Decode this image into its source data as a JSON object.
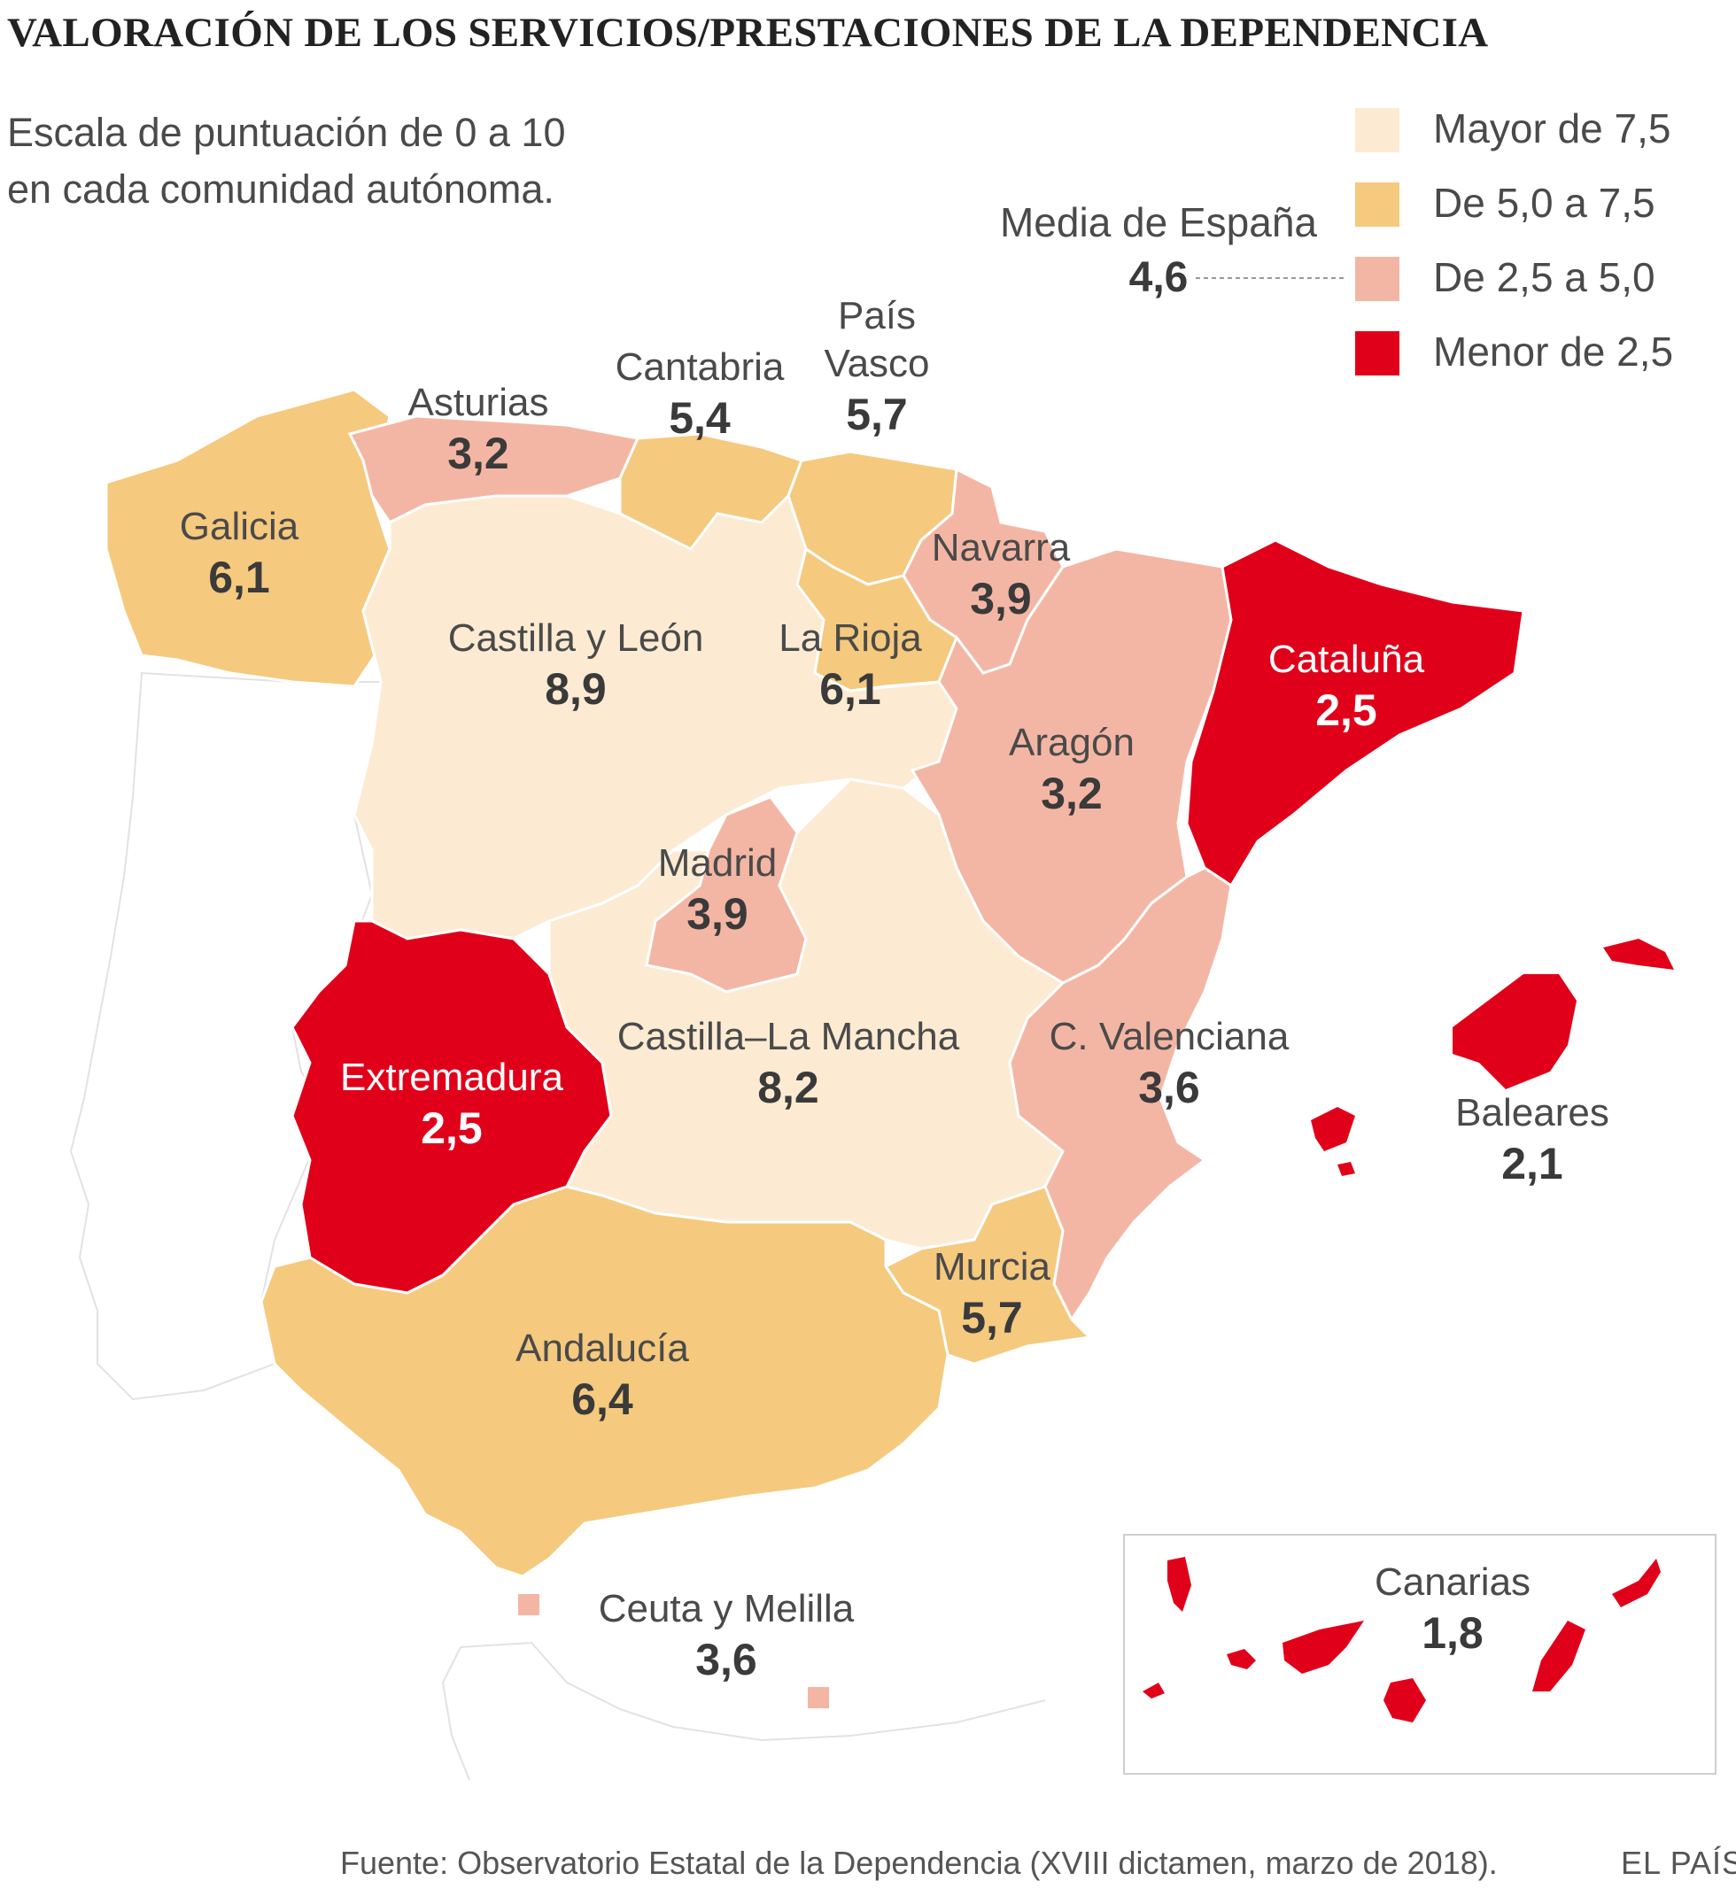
{
  "title": "VALORACIÓN DE LOS SERVICIOS/PRESTACIONES DE LA DEPENDENCIA",
  "subtitle": [
    "Escala de puntuación de 0 a 10",
    "en cada comunidad autónoma."
  ],
  "legend": [
    {
      "label": "Mayor de 7,5",
      "color": "#fcebd2"
    },
    {
      "label": "De 5,0 a 7,5",
      "color": "#f5c97e"
    },
    {
      "label": "De 2,5 a 5,0",
      "color": "#f4b6a4"
    },
    {
      "label": "Menor de 2,5",
      "color": "#e1001a"
    }
  ],
  "media": {
    "label": "Media de España",
    "value": "4,6"
  },
  "regions": [
    {
      "id": "galicia",
      "name": "Galicia",
      "value": "6,1",
      "category": "De 5,0 a 7,5"
    },
    {
      "id": "asturias",
      "name": "Asturias",
      "value": "3,2",
      "category": "De 2,5 a 5,0"
    },
    {
      "id": "cantabria",
      "name": "Cantabria",
      "value": "5,4",
      "category": "De 5,0 a 7,5"
    },
    {
      "id": "pais-vasco",
      "name": "País Vasco",
      "name_lines": [
        "País",
        "Vasco"
      ],
      "value": "5,7",
      "category": "De 5,0 a 7,5"
    },
    {
      "id": "navarra",
      "name": "Navarra",
      "value": "3,9",
      "category": "De 2,5 a 5,0"
    },
    {
      "id": "castilla-y-leon",
      "name": "Castilla y León",
      "value": "8,9",
      "category": "Mayor de 7,5"
    },
    {
      "id": "la-rioja",
      "name": "La Rioja",
      "value": "6,1",
      "category": "De 5,0 a 7,5"
    },
    {
      "id": "cataluna",
      "name": "Cataluña",
      "value": "2,5",
      "category": "Menor de 2,5"
    },
    {
      "id": "aragon",
      "name": "Aragón",
      "value": "3,2",
      "category": "De 2,5 a 5,0"
    },
    {
      "id": "madrid",
      "name": "Madrid",
      "value": "3,9",
      "category": "De 2,5 a 5,0"
    },
    {
      "id": "extremadura",
      "name": "Extremadura",
      "value": "2,5",
      "category": "Menor de 2,5"
    },
    {
      "id": "castilla-la-mancha",
      "name": "Castilla–La Mancha",
      "value": "8,2",
      "category": "Mayor de 7,5"
    },
    {
      "id": "c-valenciana",
      "name": "C. Valenciana",
      "value": "3,6",
      "category": "De 2,5 a 5,0"
    },
    {
      "id": "baleares",
      "name": "Baleares",
      "value": "2,1",
      "category": "Menor de 2,5"
    },
    {
      "id": "murcia",
      "name": "Murcia",
      "value": "5,7",
      "category": "De 5,0 a 7,5"
    },
    {
      "id": "andalucia",
      "name": "Andalucía",
      "value": "6,4",
      "category": "De 5,0 a 7,5"
    },
    {
      "id": "ceuta-y-melilla",
      "name": "Ceuta  y Melilla",
      "value": "3,6",
      "category": "De 2,5 a 5,0"
    },
    {
      "id": "canarias",
      "name": "Canarias",
      "value": "1,8",
      "category": "Menor de 2,5"
    }
  ],
  "footer": {
    "source": "Fuente: Observatorio Estatal de la Dependencia (XVIII dictamen, marzo de 2018).",
    "brand": "EL PAÍS"
  }
}
